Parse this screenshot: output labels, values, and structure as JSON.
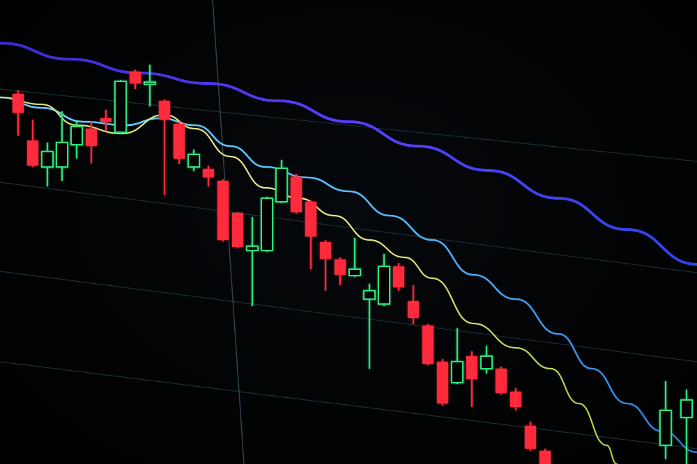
{
  "chart_data": {
    "type": "candlestick",
    "title": "",
    "xlabel": "",
    "ylabel": "",
    "grid": true,
    "legend": "none",
    "colors": {
      "up": "#2de07a",
      "down": "#ff2a3a",
      "ma_slow": "#4a3cff",
      "ma_mid": "#4fb8ff",
      "ma_fast": "#e6e27a",
      "grid": "#1c3038",
      "background": "#000000"
    },
    "candles": [
      {
        "o": 56.5,
        "h": 57.0,
        "l": 50.5,
        "c": 53.8
      },
      {
        "o": 49.8,
        "h": 52.8,
        "l": 46.0,
        "c": 46.2
      },
      {
        "o": 46.0,
        "h": 49.5,
        "l": 43.2,
        "c": 48.2
      },
      {
        "o": 46.0,
        "h": 54.0,
        "l": 44.0,
        "c": 49.5
      },
      {
        "o": 49.2,
        "h": 52.5,
        "l": 47.2,
        "c": 51.8
      },
      {
        "o": 51.5,
        "h": 52.5,
        "l": 46.5,
        "c": 49.0
      },
      {
        "o": 53.0,
        "h": 54.2,
        "l": 51.2,
        "c": 52.5
      },
      {
        "o": 51.0,
        "h": 58.5,
        "l": 50.8,
        "c": 58.3
      },
      {
        "o": 59.7,
        "h": 60.0,
        "l": 57.2,
        "c": 58.0
      },
      {
        "o": 57.9,
        "h": 60.7,
        "l": 54.7,
        "c": 58.2
      },
      {
        "o": 55.5,
        "h": 55.7,
        "l": 42.0,
        "c": 52.8
      },
      {
        "o": 52.2,
        "h": 52.5,
        "l": 46.4,
        "c": 47.2
      },
      {
        "o": 46.0,
        "h": 48.5,
        "l": 45.4,
        "c": 47.8
      },
      {
        "o": 45.7,
        "h": 46.2,
        "l": 43.2,
        "c": 44.5
      },
      {
        "o": 44.0,
        "h": 44.2,
        "l": 35.3,
        "c": 35.5
      },
      {
        "o": 39.4,
        "h": 39.5,
        "l": 34.3,
        "c": 34.5
      },
      {
        "o": 34.0,
        "h": 38.8,
        "l": 26.0,
        "c": 34.6
      },
      {
        "o": 34.0,
        "h": 41.7,
        "l": 33.8,
        "c": 41.5
      },
      {
        "o": 41.0,
        "h": 47.0,
        "l": 40.8,
        "c": 45.8
      },
      {
        "o": 44.6,
        "h": 45.0,
        "l": 39.3,
        "c": 39.5
      },
      {
        "o": 41.0,
        "h": 41.2,
        "l": 31.3,
        "c": 36.0
      },
      {
        "o": 35.2,
        "h": 35.5,
        "l": 28.2,
        "c": 32.8
      },
      {
        "o": 32.7,
        "h": 33.0,
        "l": 29.0,
        "c": 30.5
      },
      {
        "o": 30.4,
        "h": 35.8,
        "l": 30.2,
        "c": 31.3
      },
      {
        "o": 27.0,
        "h": 29.2,
        "l": 17.0,
        "c": 28.2
      },
      {
        "o": 26.3,
        "h": 33.5,
        "l": 26.0,
        "c": 31.7
      },
      {
        "o": 31.7,
        "h": 32.2,
        "l": 28.2,
        "c": 28.7
      },
      {
        "o": 26.7,
        "h": 29.0,
        "l": 23.4,
        "c": 24.3
      },
      {
        "o": 23.2,
        "h": 23.4,
        "l": 17.5,
        "c": 17.7
      },
      {
        "o": 18.0,
        "h": 18.4,
        "l": 11.7,
        "c": 12.0
      },
      {
        "o": 15.0,
        "h": 22.8,
        "l": 14.8,
        "c": 18.0
      },
      {
        "o": 18.8,
        "h": 19.5,
        "l": 11.5,
        "c": 15.5
      },
      {
        "o": 17.0,
        "h": 20.3,
        "l": 16.3,
        "c": 18.8
      },
      {
        "o": 17.0,
        "h": 17.3,
        "l": 13.3,
        "c": 13.5
      },
      {
        "o": 13.7,
        "h": 14.2,
        "l": 11.0,
        "c": 11.5
      },
      {
        "o": 8.8,
        "h": 9.4,
        "l": 5.2,
        "c": 5.5
      },
      {
        "o": 5.2,
        "h": 5.5,
        "l": 3.0,
        "c": 3.3
      }
    ],
    "moving_averages": [
      {
        "key": "ma_slow",
        "points": [
          [
            -1.2,
            63.8
          ],
          [
            3.5,
            61.5
          ],
          [
            8.3,
            59.5
          ],
          [
            13,
            58
          ],
          [
            17.8,
            55.5
          ],
          [
            22.6,
            52.5
          ],
          [
            27.3,
            49
          ],
          [
            32.1,
            45.5
          ],
          [
            36.9,
            41.5
          ],
          [
            41.6,
            37
          ],
          [
            46.4,
            32
          ]
        ]
      },
      {
        "key": "ma_mid",
        "points": [
          [
            -1.2,
            56
          ],
          [
            1.6,
            54.5
          ],
          [
            4.5,
            52.5
          ],
          [
            7.3,
            52
          ],
          [
            9.7,
            53
          ],
          [
            12.1,
            52
          ],
          [
            14.5,
            49
          ],
          [
            16.9,
            46
          ],
          [
            19.7,
            44.5
          ],
          [
            22.6,
            42.5
          ],
          [
            25.4,
            39
          ],
          [
            28.3,
            35.5
          ],
          [
            31.1,
            30.5
          ],
          [
            34,
            27
          ],
          [
            36.9,
            22
          ],
          [
            39.2,
            17
          ],
          [
            41.6,
            12
          ],
          [
            44,
            8
          ],
          [
            46.4,
            5
          ]
        ]
      },
      {
        "key": "ma_fast",
        "points": [
          [
            -1.2,
            56
          ],
          [
            1.6,
            55
          ],
          [
            4,
            52
          ],
          [
            7.1,
            50.8
          ],
          [
            10,
            53.5
          ],
          [
            12.1,
            51.5
          ],
          [
            14.5,
            47.5
          ],
          [
            16.9,
            43
          ],
          [
            19.2,
            41.5
          ],
          [
            21.6,
            39
          ],
          [
            24,
            35.5
          ],
          [
            26.4,
            33
          ],
          [
            28.3,
            30
          ],
          [
            31.1,
            23.5
          ],
          [
            34,
            20
          ],
          [
            36.4,
            17
          ],
          [
            38.3,
            12
          ],
          [
            40.2,
            6
          ],
          [
            40.9,
            3.3
          ]
        ]
      }
    ]
  }
}
